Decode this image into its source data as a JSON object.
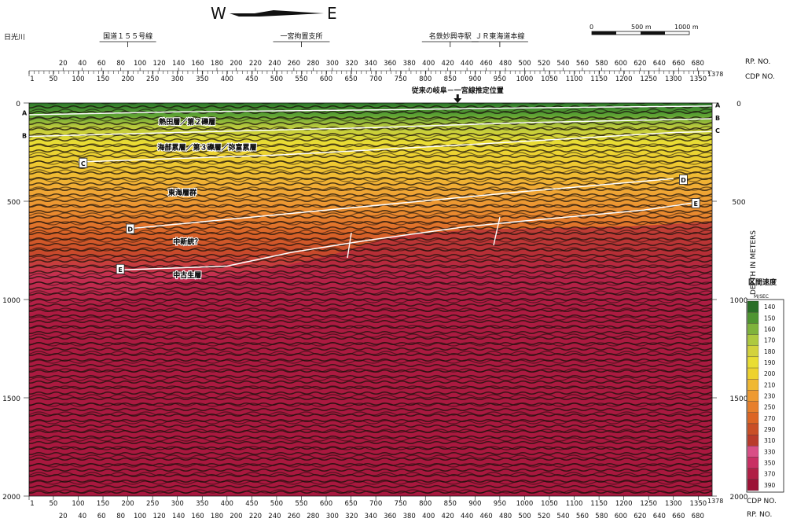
{
  "compass": {
    "west": "W",
    "east": "E"
  },
  "scale_bar": {
    "labels": [
      "0",
      "500 m",
      "1000 m"
    ]
  },
  "landmarks": [
    {
      "label": "日光川",
      "cdp": 1
    },
    {
      "label": "国道１５５号線",
      "cdp": 200
    },
    {
      "label": "一宮拘置支所",
      "cdp": 550
    },
    {
      "label": "名鉄妙興寺駅",
      "cdp": 850
    },
    {
      "label": "ＪＲ東海道本線",
      "cdp": 950
    }
  ],
  "axes": {
    "rp_label": "RP. NO.",
    "cdp_label": "CDP NO.",
    "depth_label": "DEPTH IN METERS",
    "rp_ticks": [
      20,
      40,
      60,
      80,
      100,
      120,
      140,
      160,
      180,
      200,
      220,
      240,
      260,
      280,
      300,
      320,
      340,
      360,
      380,
      400,
      420,
      440,
      460,
      480,
      500,
      520,
      540,
      560,
      580,
      600,
      620,
      640,
      660,
      680
    ],
    "cdp_ticks": [
      1,
      50,
      100,
      150,
      200,
      250,
      300,
      350,
      400,
      450,
      500,
      550,
      600,
      650,
      700,
      750,
      800,
      850,
      900,
      950,
      1000,
      1050,
      1100,
      1150,
      1200,
      1250,
      1300,
      1350
    ],
    "cdp_end_label": "1378",
    "depth_ticks_left": [
      0,
      500,
      1000,
      1500,
      2000
    ],
    "depth_ticks_right": [
      0,
      500,
      1000,
      1500,
      2000
    ],
    "depth_range": [
      0,
      2000
    ]
  },
  "annotation_top": "従来の岐阜－一宮線推定位置",
  "annotation_top_cdp": 865,
  "unit_labels": [
    {
      "text": "熱田層／第２礫層",
      "cdp": 320,
      "depth": 100
    },
    {
      "text": "海部累層／第３礫層／弥富累層",
      "cdp": 360,
      "depth": 230
    },
    {
      "text": "東海層群",
      "cdp": 310,
      "depth": 460
    },
    {
      "text": "中新統？",
      "cdp": 320,
      "depth": 710
    },
    {
      "text": "中古生層",
      "cdp": 320,
      "depth": 880
    }
  ],
  "horizons": [
    {
      "name": "A",
      "points": [
        [
          1,
          60
        ],
        [
          300,
          45
        ],
        [
          700,
          35
        ],
        [
          1000,
          25
        ],
        [
          1378,
          15
        ]
      ]
    },
    {
      "name": "B",
      "points": [
        [
          1,
          170
        ],
        [
          300,
          150
        ],
        [
          700,
          125
        ],
        [
          1000,
          100
        ],
        [
          1378,
          80
        ]
      ]
    },
    {
      "name": "C",
      "points": [
        [
          100,
          300
        ],
        [
          500,
          265
        ],
        [
          900,
          210
        ],
        [
          1300,
          150
        ],
        [
          1378,
          145
        ]
      ]
    },
    {
      "name": "D",
      "points": [
        [
          200,
          640
        ],
        [
          600,
          545
        ],
        [
          1000,
          450
        ],
        [
          1300,
          385
        ]
      ]
    },
    {
      "name": "E",
      "points": [
        [
          180,
          850
        ],
        [
          400,
          830
        ],
        [
          530,
          760
        ],
        [
          680,
          700
        ],
        [
          880,
          630
        ],
        [
          1000,
          600
        ],
        [
          1240,
          545
        ],
        [
          1350,
          505
        ]
      ]
    }
  ],
  "horizon_markers": [
    {
      "text": "A",
      "side": "left",
      "cdp": 1,
      "depth": 50
    },
    {
      "text": "B",
      "side": "left",
      "cdp": 1,
      "depth": 165
    },
    {
      "text": "A",
      "side": "right",
      "cdp": 1378,
      "depth": 10
    },
    {
      "text": "B",
      "side": "right",
      "cdp": 1378,
      "depth": 75
    },
    {
      "text": "C",
      "side": "right",
      "cdp": 1378,
      "depth": 140
    },
    {
      "text": "C",
      "side": "box",
      "cdp": 110,
      "depth": 305
    },
    {
      "text": "D",
      "side": "box",
      "cdp": 1320,
      "depth": 390
    },
    {
      "text": "D",
      "side": "box",
      "cdp": 205,
      "depth": 640
    },
    {
      "text": "E",
      "side": "box",
      "cdp": 1345,
      "depth": 510
    },
    {
      "text": "E",
      "side": "box",
      "cdp": 185,
      "depth": 845
    }
  ],
  "legend": {
    "title": "区間速度",
    "unit": "M/SEC",
    "values": [
      "140",
      "150",
      "160",
      "170",
      "180",
      "190",
      "200",
      "210",
      "230",
      "250",
      "270",
      "290",
      "310",
      "330",
      "350",
      "370",
      "390"
    ],
    "colors": [
      "#2a6e27",
      "#4f9531",
      "#7fb33c",
      "#aec93f",
      "#d3d23c",
      "#e9dd33",
      "#eed22e",
      "#f0b832",
      "#ee9a31",
      "#e77f2b",
      "#dc6524",
      "#c94f26",
      "#b93b2b",
      "#d94f86",
      "#c92f63",
      "#b01f45",
      "#9c1236"
    ]
  }
}
